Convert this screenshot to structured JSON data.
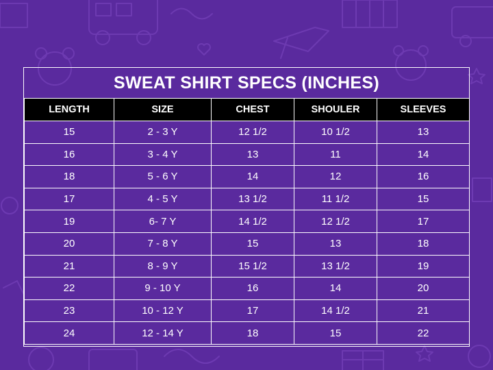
{
  "title": "SWEAT SHIRT SPECS (INCHES)",
  "colors": {
    "background": "#5a2a9e",
    "header_bg": "#000000",
    "text": "#ffffff"
  },
  "table": {
    "headers": [
      "LENGTH",
      "SIZE",
      "CHEST",
      "SHOULER",
      "SLEEVES"
    ],
    "rows": [
      [
        "15",
        "2 - 3 Y",
        "12 1/2",
        "10 1/2",
        "13"
      ],
      [
        "16",
        "3 - 4 Y",
        "13",
        "11",
        "14"
      ],
      [
        "18",
        "5 - 6 Y",
        "14",
        "12",
        "16"
      ],
      [
        "17",
        "4 - 5 Y",
        "13 1/2",
        "11 1/2",
        "15"
      ],
      [
        "19",
        "6- 7 Y",
        "14 1/2",
        "12 1/2",
        "17"
      ],
      [
        "20",
        "7 - 8 Y",
        "15",
        "13",
        "18"
      ],
      [
        "21",
        "8 - 9 Y",
        "15 1/2",
        "13 1/2",
        "19"
      ],
      [
        "22",
        "9 - 10 Y",
        "16",
        "14",
        "20"
      ],
      [
        "23",
        "10 - 12 Y",
        "17",
        "14 1/2",
        "21"
      ],
      [
        "24",
        "12 - 14 Y",
        "18",
        "15",
        "22"
      ]
    ]
  }
}
